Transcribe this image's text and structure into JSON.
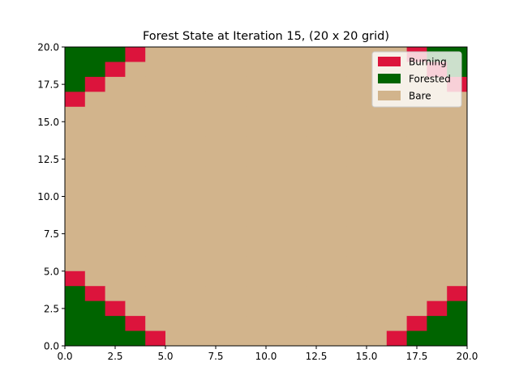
{
  "chart_data": {
    "type": "heatmap",
    "title": "Forest State at Iteration 15, (20 x 20 grid)",
    "xlabel": "",
    "ylabel": "",
    "xlim": [
      0,
      20
    ],
    "ylim": [
      0,
      20
    ],
    "grid": false,
    "x_ticks": [
      0.0,
      2.5,
      5.0,
      7.5,
      10.0,
      12.5,
      15.0,
      17.5,
      20.0
    ],
    "x_tick_labels": [
      "0.0",
      "2.5",
      "5.0",
      "7.5",
      "10.0",
      "12.5",
      "15.0",
      "17.5",
      "20.0"
    ],
    "y_ticks": [
      0.0,
      2.5,
      5.0,
      7.5,
      10.0,
      12.5,
      15.0,
      17.5,
      20.0
    ],
    "y_tick_labels": [
      "0.0",
      "2.5",
      "5.0",
      "7.5",
      "10.0",
      "12.5",
      "15.0",
      "17.5",
      "20.0"
    ],
    "legend": {
      "placement": "top-right",
      "entries": [
        {
          "label": "Burning",
          "state": "burning",
          "color": "#dc143c"
        },
        {
          "label": "Forested",
          "state": "forested",
          "color": "#006400"
        },
        {
          "label": "Bare",
          "state": "bare",
          "color": "#d2b48c"
        }
      ]
    },
    "states": {
      "B": "bare",
      "F": "forested",
      "X": "burning"
    },
    "grid_rows_top_to_bottom": [
      "FFFXBBBBBBBBBBBBBXFF",
      "FFXBBBBBBBBBBBBBBBXF",
      "FXBBBBBBBBBBBBBBBBBX",
      "XBBBBBBBBBBBBBBBBBBB",
      "BBBBBBBBBBBBBBBBBBBB",
      "BBBBBBBBBBBBBBBBBBBB",
      "BBBBBBBBBBBBBBBBBBBB",
      "BBBBBBBBBBBBBBBBBBBB",
      "BBBBBBBBBBBBBBBBBBBB",
      "BBBBBBBBBBBBBBBBBBBB",
      "BBBBBBBBBBBBBBBBBBBB",
      "BBBBBBBBBBBBBBBBBBBB",
      "BBBBBBBBBBBBBBBBBBBB",
      "BBBBBBBBBBBBBBBBBBBB",
      "BBBBBBBBBBBBBBBBBBBB",
      "XBBBBBBBBBBBBBBBBBBB",
      "FXBBBBBBBBBBBBBBBBBX",
      "FFXBBBBBBBBBBBBBBBXF",
      "FFFXBBBBBBBBBBBBBXFF",
      "FFFFXBBBBBBBBBBBXFFF"
    ]
  }
}
